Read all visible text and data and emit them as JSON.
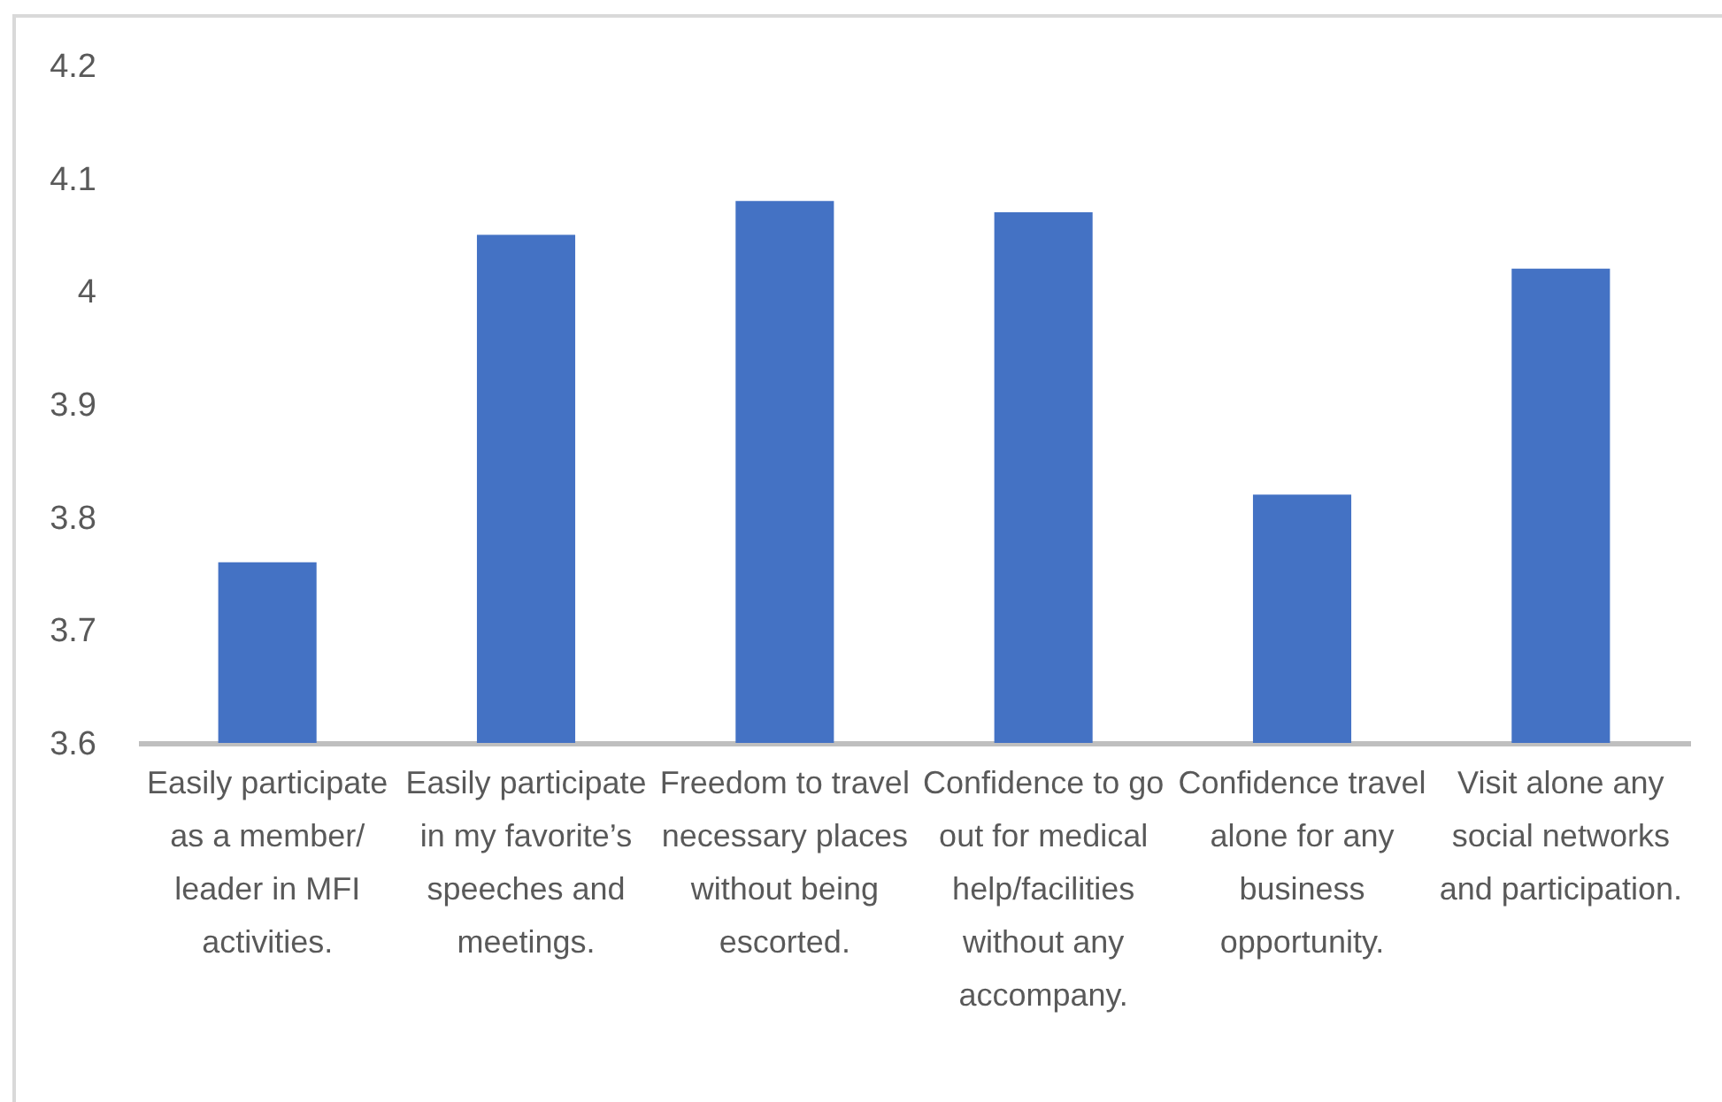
{
  "chart_data": {
    "type": "bar",
    "categories": [
      "Easily participate as a member/ leader in MFI activities.",
      "Easily participate in my favorite’s speeches and meetings.",
      "Freedom to travel necessary places without being escorted.",
      "Confidence to go out for medical help/facilities without any accompany.",
      "Confidence travel alone for any business opportunity.",
      "Visit alone any social networks and participation."
    ],
    "values": [
      3.76,
      4.05,
      4.08,
      4.07,
      3.82,
      4.02
    ],
    "color": "#4472c4",
    "ylim": [
      3.6,
      4.2
    ],
    "yticks": [
      3.6,
      3.7,
      3.8,
      3.9,
      4,
      4.1,
      4.2
    ]
  }
}
